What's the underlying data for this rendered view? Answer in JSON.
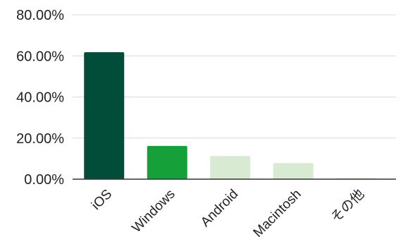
{
  "chart_data": {
    "type": "bar",
    "title": "",
    "xlabel": "",
    "ylabel": "",
    "categories": [
      "iOS",
      "Windows",
      "Android",
      "Macintosh",
      "その他"
    ],
    "values": [
      61.8,
      16.2,
      11.3,
      7.8,
      0.5
    ],
    "value_format": "percent_2dp",
    "ylim": [
      0,
      80
    ],
    "y_ticks": [
      0,
      20,
      40,
      60,
      80
    ],
    "y_tick_labels": [
      "0.00%",
      "20.00%",
      "40.00%",
      "60.00%",
      "80.00%"
    ],
    "grid": true,
    "legend": "none",
    "bar_colors": [
      "#024d3a",
      "#16a03a",
      "#d8ead2",
      "#d8ead2",
      "#d8ead2"
    ],
    "category_label_rotation_deg": -45
  }
}
